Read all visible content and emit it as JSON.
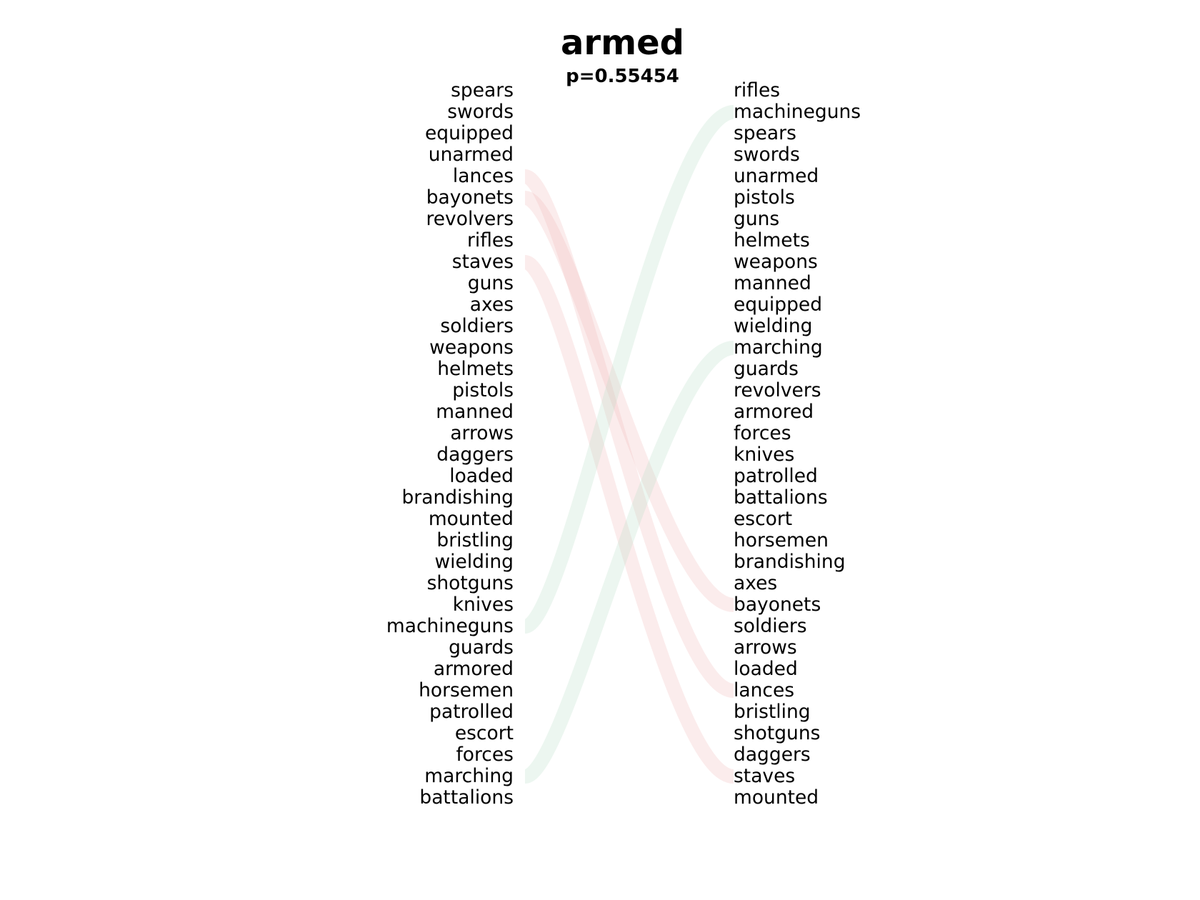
{
  "title": "armed",
  "subtitle": "p=0.55454",
  "left_words": [
    "spears",
    "swords",
    "equipped",
    "unarmed",
    "lances",
    "bayonets",
    "revolvers",
    "rifles",
    "staves",
    "guns",
    "axes",
    "soldiers",
    "weapons",
    "helmets",
    "pistols",
    "manned",
    "arrows",
    "daggers",
    "loaded",
    "brandishing",
    "mounted",
    "bristling",
    "wielding",
    "shotguns",
    "knives",
    "machineguns",
    "guards",
    "armored",
    "horsemen",
    "patrolled",
    "escort",
    "forces",
    "marching",
    "battalions"
  ],
  "right_words": [
    "rifles",
    "machineguns",
    "spears",
    "swords",
    "unarmed",
    "pistols",
    "guns",
    "helmets",
    "weapons",
    "manned",
    "equipped",
    "wielding",
    "marching",
    "guards",
    "revolvers",
    "armored",
    "forces",
    "knives",
    "patrolled",
    "battalions",
    "escort",
    "horsemen",
    "brandishing",
    "axes",
    "bayonets",
    "soldiers",
    "arrows",
    "loaded",
    "lances",
    "bristling",
    "shotguns",
    "daggers",
    "staves",
    "mounted"
  ],
  "connections": [
    {
      "word": "lances",
      "from": 4,
      "to": 28,
      "direction": "down",
      "color": "#f0b4b4"
    },
    {
      "word": "bayonets",
      "from": 5,
      "to": 24,
      "direction": "down",
      "color": "#f0b4b4"
    },
    {
      "word": "staves",
      "from": 8,
      "to": 32,
      "direction": "down",
      "color": "#f0b4b4"
    },
    {
      "word": "machineguns",
      "from": 25,
      "to": 1,
      "direction": "up",
      "color": "#b4dcc4"
    },
    {
      "word": "marching",
      "from": 32,
      "to": 12,
      "direction": "up",
      "color": "#b4dcc4"
    }
  ]
}
